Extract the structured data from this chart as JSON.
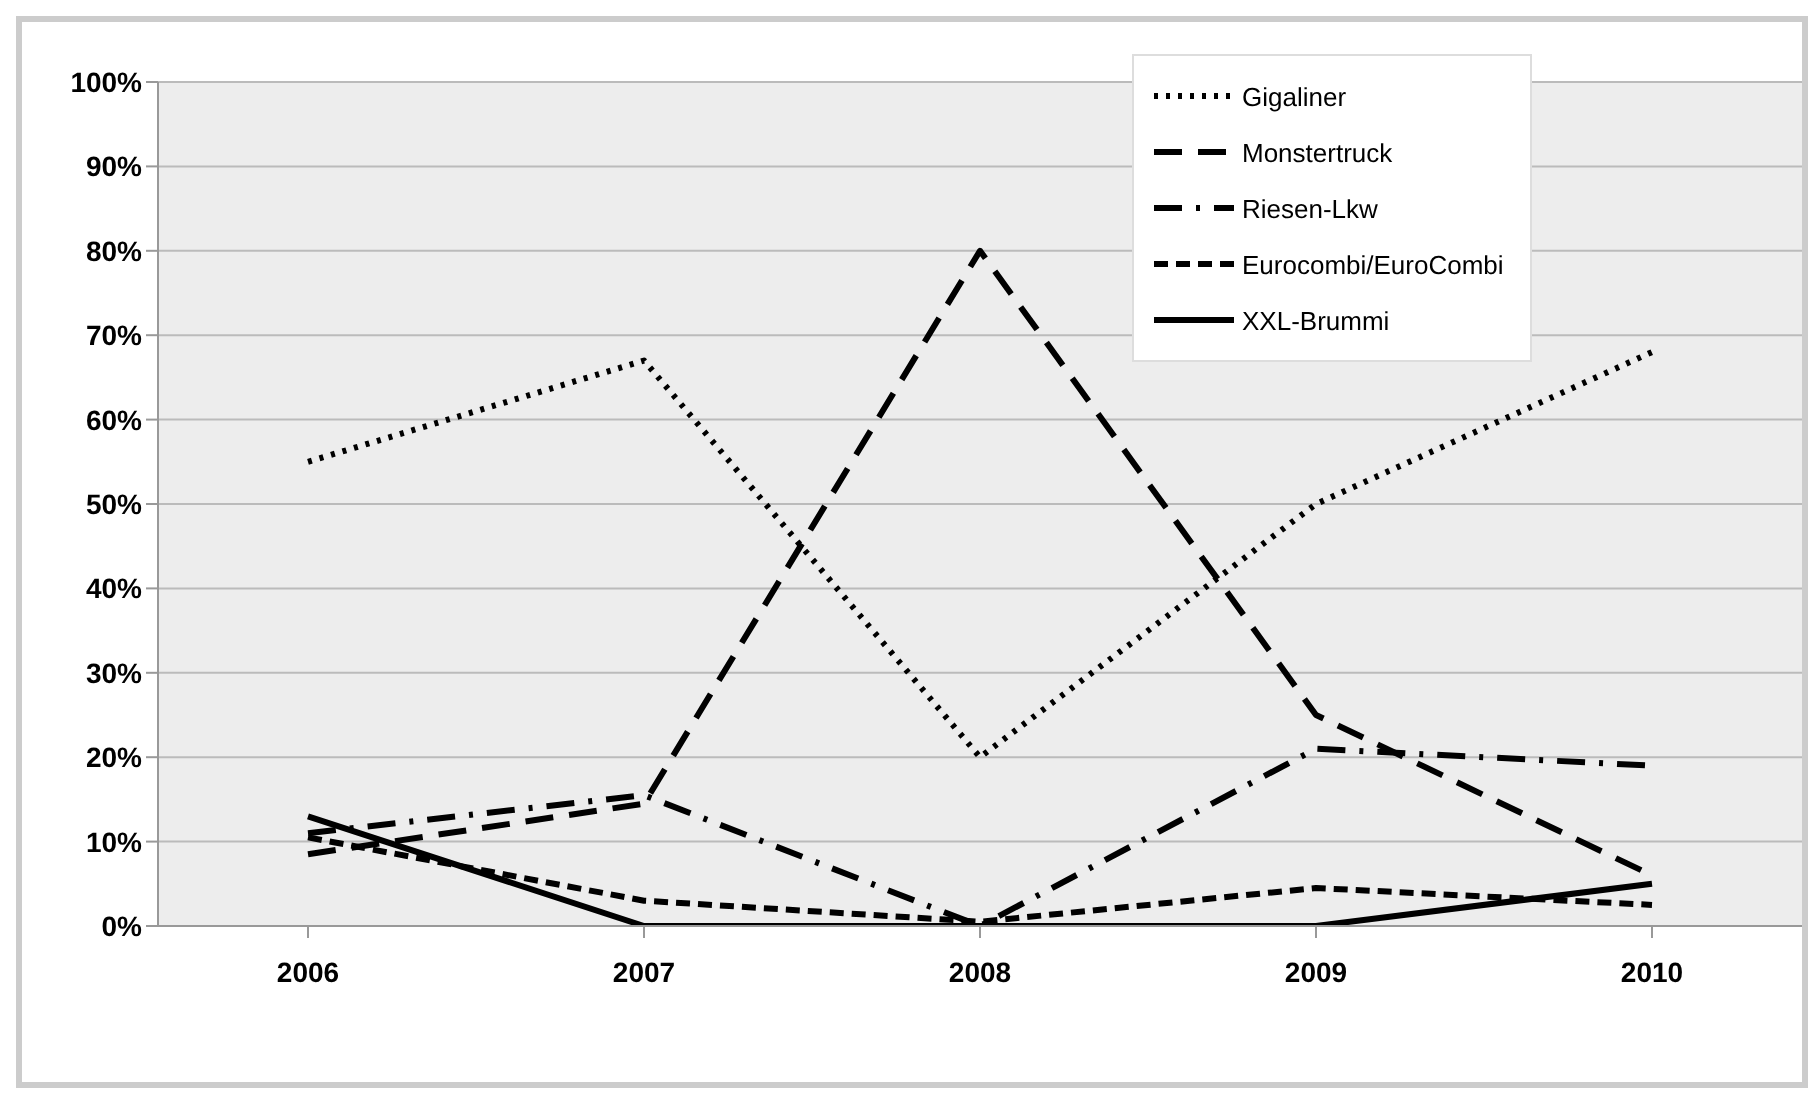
{
  "chart_data": {
    "type": "line",
    "categories": [
      "2006",
      "2007",
      "2008",
      "2009",
      "2010"
    ],
    "series": [
      {
        "name": "Gigaliner",
        "color": "#000000",
        "line_style": "dotted",
        "values": [
          55,
          67,
          20,
          50,
          68
        ]
      },
      {
        "name": "Monstertruck",
        "color": "#000000",
        "line_style": "longdash",
        "values": [
          8.5,
          14.5,
          80,
          25,
          6
        ]
      },
      {
        "name": "Riesen-Lkw",
        "color": "#000000",
        "line_style": "dashdot",
        "values": [
          11,
          15.5,
          0,
          21,
          19
        ]
      },
      {
        "name": "Eurocombi/EuroCombi",
        "color": "#000000",
        "line_style": "dashed",
        "values": [
          10.5,
          3,
          0.5,
          4.5,
          2.5
        ]
      },
      {
        "name": "XXL-Brummi",
        "color": "#000000",
        "line_style": "solid",
        "values": [
          13,
          0,
          0,
          0,
          5
        ]
      }
    ],
    "ylim": [
      0,
      100
    ],
    "yticks": [
      {
        "value": 0,
        "label": "0%"
      },
      {
        "value": 10,
        "label": "10%"
      },
      {
        "value": 20,
        "label": "20%"
      },
      {
        "value": 30,
        "label": "30%"
      },
      {
        "value": 40,
        "label": "40%"
      },
      {
        "value": 50,
        "label": "50%"
      },
      {
        "value": 60,
        "label": "60%"
      },
      {
        "value": 70,
        "label": "70%"
      },
      {
        "value": 80,
        "label": "80%"
      },
      {
        "value": 90,
        "label": "90%"
      },
      {
        "value": 100,
        "label": "100%"
      }
    ],
    "grid": "y",
    "legend": "top right",
    "marker": "none"
  }
}
